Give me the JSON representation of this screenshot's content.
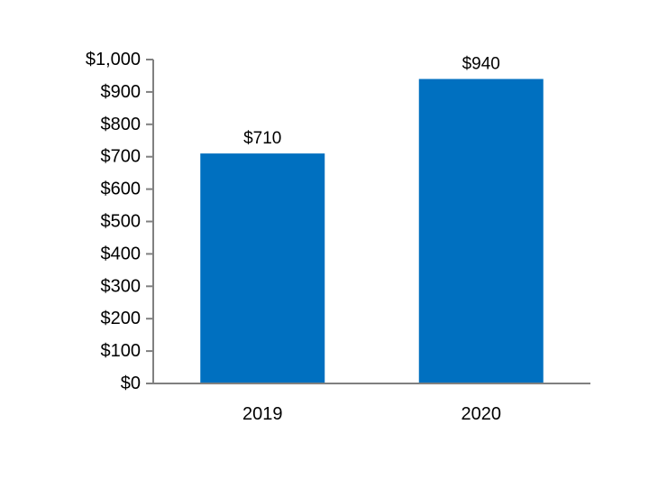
{
  "chart_data": {
    "type": "bar",
    "categories": [
      "2019",
      "2020"
    ],
    "values": [
      710,
      940
    ],
    "data_labels": [
      "$710",
      "$940"
    ],
    "y_ticks": [
      0,
      100,
      200,
      300,
      400,
      500,
      600,
      700,
      800,
      900,
      1000
    ],
    "y_tick_labels": [
      "$0",
      "$100",
      "$200",
      "$300",
      "$400",
      "$500",
      "$600",
      "$700",
      "$800",
      "$900",
      "$1,000"
    ],
    "ylim": [
      0,
      1000
    ],
    "title": "",
    "xlabel": "",
    "ylabel": "",
    "grid": false,
    "legend": "none",
    "bar_color": "#0070C0",
    "axis_color": "#808080"
  }
}
